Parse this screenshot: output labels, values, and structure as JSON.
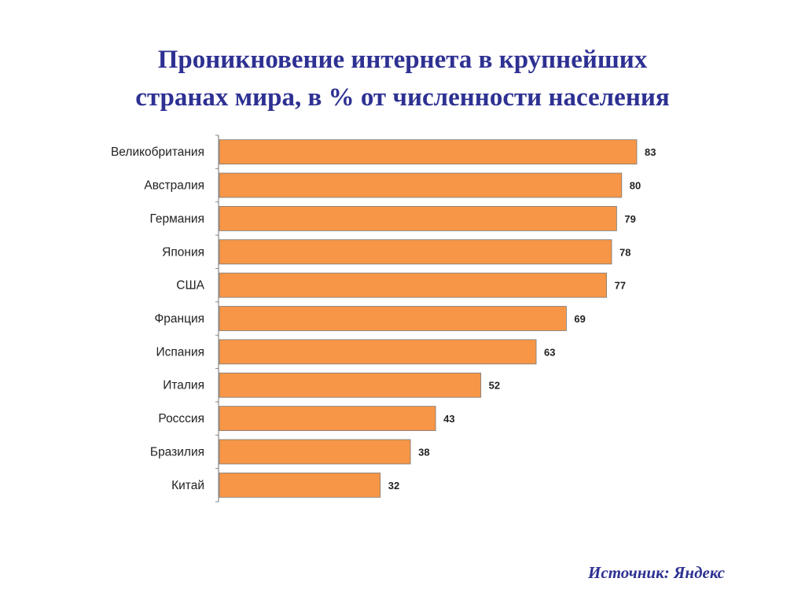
{
  "title": {
    "line1": "Проникновение интернета в крупнейших",
    "line2": "странах мира, в % от численности населения"
  },
  "source": "Источник: Яндекс",
  "chart_data": {
    "type": "bar",
    "orientation": "horizontal",
    "categories": [
      "Великобритания",
      "Австралия",
      "Германия",
      "Япония",
      "США",
      "Франция",
      "Испания",
      "Италия",
      "Росссия",
      "Бразилия",
      "Китай"
    ],
    "values": [
      83,
      80,
      79,
      78,
      77,
      69,
      63,
      52,
      43,
      38,
      32
    ],
    "bar_color": "#f79646",
    "bar_edge_color": "#7a7a7a",
    "axis_color": "#888888",
    "grid": false,
    "legend": false
  }
}
